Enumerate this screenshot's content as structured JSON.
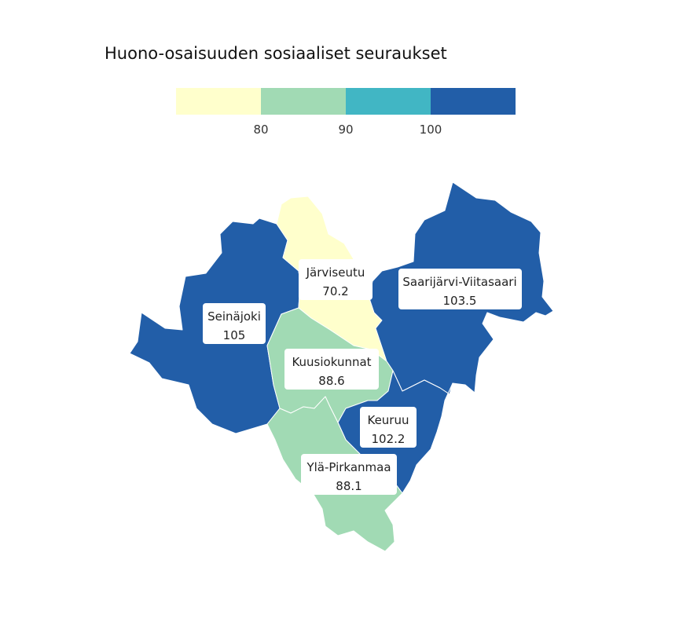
{
  "title": "Huono-osaisuuden sosiaaliset seuraukset",
  "legend": {
    "colors": [
      "#ffffcc",
      "#a1dab4",
      "#41b6c4",
      "#225ea8"
    ],
    "ticks": [
      "80",
      "90",
      "100"
    ]
  },
  "regions": [
    {
      "id": "seinajoki",
      "name": "Seinäjoki",
      "value": "105",
      "color": "#225ea8"
    },
    {
      "id": "jarviseutu",
      "name": "Järviseutu",
      "value": "70.2",
      "color": "#ffffcc"
    },
    {
      "id": "saarijarvi",
      "name": "Saarijärvi-Viitasaari",
      "value": "103.5",
      "color": "#225ea8"
    },
    {
      "id": "kuusiokunnat",
      "name": "Kuusiokunnat",
      "value": "88.6",
      "color": "#a1dab4"
    },
    {
      "id": "keuruu",
      "name": "Keuruu",
      "value": "102.2",
      "color": "#225ea8"
    },
    {
      "id": "yla-pirkanmaa",
      "name": "Ylä-Pirkanmaa",
      "value": "88.1",
      "color": "#a1dab4"
    }
  ]
}
